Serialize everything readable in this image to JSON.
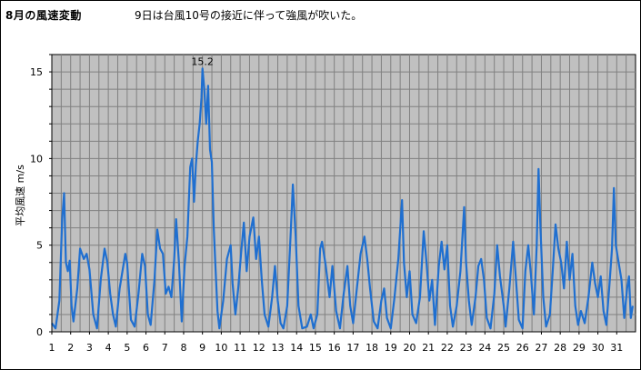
{
  "header": {
    "title": "8月の風速変動",
    "subtitle": "9日は台風10号の接近に伴って強風が吹いた。"
  },
  "colors": {
    "plot_background": "#c0c0c0",
    "grid": "#808080",
    "line": "#1f6fd0"
  },
  "chart_data": {
    "type": "line",
    "title": "8月の風速変動",
    "subtitle": "9日は台風10号の接近に伴って強風が吹いた。",
    "xlabel": "",
    "ylabel": "平均風速 m/s",
    "xlim": [
      1,
      32
    ],
    "ylim": [
      0,
      16
    ],
    "y_ticks": [
      0,
      5,
      10,
      15
    ],
    "x_ticks": [
      1,
      2,
      3,
      4,
      5,
      6,
      7,
      8,
      9,
      10,
      11,
      12,
      13,
      14,
      15,
      16,
      17,
      18,
      19,
      20,
      21,
      22,
      23,
      24,
      25,
      26,
      27,
      28,
      29,
      30,
      31
    ],
    "grid": true,
    "annotations": [
      {
        "text": "15.2",
        "x": 9.0,
        "y": 15.2
      }
    ],
    "series": [
      {
        "values": [
          [
            1.0,
            0.5
          ],
          [
            1.2,
            0.2
          ],
          [
            1.4,
            1.8
          ],
          [
            1.55,
            6.5
          ],
          [
            1.65,
            8.0
          ],
          [
            1.75,
            4.0
          ],
          [
            1.85,
            3.5
          ],
          [
            1.95,
            4.1
          ],
          [
            2.05,
            1.5
          ],
          [
            2.15,
            0.6
          ],
          [
            2.35,
            2.5
          ],
          [
            2.5,
            4.8
          ],
          [
            2.7,
            4.2
          ],
          [
            2.85,
            4.5
          ],
          [
            3.0,
            3.6
          ],
          [
            3.2,
            1.0
          ],
          [
            3.4,
            0.2
          ],
          [
            3.6,
            3.0
          ],
          [
            3.8,
            4.8
          ],
          [
            3.95,
            4.0
          ],
          [
            4.1,
            2.2
          ],
          [
            4.25,
            1.0
          ],
          [
            4.4,
            0.3
          ],
          [
            4.6,
            2.5
          ],
          [
            4.9,
            4.5
          ],
          [
            5.0,
            4.0
          ],
          [
            5.2,
            0.7
          ],
          [
            5.4,
            0.3
          ],
          [
            5.6,
            2.2
          ],
          [
            5.8,
            4.5
          ],
          [
            5.95,
            3.8
          ],
          [
            6.1,
            1.0
          ],
          [
            6.25,
            0.4
          ],
          [
            6.45,
            3.0
          ],
          [
            6.6,
            5.9
          ],
          [
            6.75,
            4.8
          ],
          [
            6.9,
            4.5
          ],
          [
            7.05,
            2.2
          ],
          [
            7.2,
            2.6
          ],
          [
            7.35,
            2.0
          ],
          [
            7.5,
            4.2
          ],
          [
            7.6,
            6.5
          ],
          [
            7.75,
            4.0
          ],
          [
            7.9,
            0.6
          ],
          [
            8.05,
            3.8
          ],
          [
            8.2,
            5.5
          ],
          [
            8.35,
            9.5
          ],
          [
            8.45,
            10.0
          ],
          [
            8.55,
            7.5
          ],
          [
            8.65,
            9.6
          ],
          [
            8.75,
            11.0
          ],
          [
            8.85,
            12.0
          ],
          [
            8.95,
            13.5
          ],
          [
            9.0,
            15.2
          ],
          [
            9.1,
            14.0
          ],
          [
            9.2,
            12.0
          ],
          [
            9.3,
            14.2
          ],
          [
            9.4,
            10.5
          ],
          [
            9.5,
            9.8
          ],
          [
            9.6,
            6.0
          ],
          [
            9.7,
            3.5
          ],
          [
            9.8,
            1.2
          ],
          [
            9.9,
            0.2
          ],
          [
            10.1,
            1.8
          ],
          [
            10.3,
            4.2
          ],
          [
            10.5,
            5.0
          ],
          [
            10.6,
            2.8
          ],
          [
            10.75,
            1.0
          ],
          [
            10.9,
            2.5
          ],
          [
            11.05,
            4.5
          ],
          [
            11.2,
            6.3
          ],
          [
            11.35,
            3.5
          ],
          [
            11.5,
            5.5
          ],
          [
            11.7,
            6.6
          ],
          [
            11.85,
            4.2
          ],
          [
            12.0,
            5.5
          ],
          [
            12.15,
            3.0
          ],
          [
            12.3,
            1.0
          ],
          [
            12.5,
            0.3
          ],
          [
            12.7,
            2.0
          ],
          [
            12.85,
            3.8
          ],
          [
            13.0,
            1.8
          ],
          [
            13.15,
            0.5
          ],
          [
            13.3,
            0.2
          ],
          [
            13.5,
            1.5
          ],
          [
            13.7,
            6.0
          ],
          [
            13.8,
            8.5
          ],
          [
            13.95,
            5.5
          ],
          [
            14.1,
            1.5
          ],
          [
            14.3,
            0.2
          ],
          [
            14.55,
            0.3
          ],
          [
            14.75,
            1.0
          ],
          [
            14.9,
            0.2
          ],
          [
            15.1,
            1.0
          ],
          [
            15.25,
            4.8
          ],
          [
            15.35,
            5.2
          ],
          [
            15.55,
            3.8
          ],
          [
            15.75,
            2.0
          ],
          [
            15.9,
            3.8
          ],
          [
            16.1,
            1.2
          ],
          [
            16.3,
            0.2
          ],
          [
            16.5,
            2.2
          ],
          [
            16.7,
            3.8
          ],
          [
            16.85,
            1.5
          ],
          [
            17.0,
            0.5
          ],
          [
            17.2,
            2.5
          ],
          [
            17.4,
            4.5
          ],
          [
            17.6,
            5.5
          ],
          [
            17.75,
            4.2
          ],
          [
            17.9,
            2.5
          ],
          [
            18.1,
            0.6
          ],
          [
            18.3,
            0.2
          ],
          [
            18.5,
            1.8
          ],
          [
            18.65,
            2.5
          ],
          [
            18.8,
            0.8
          ],
          [
            19.0,
            0.2
          ],
          [
            19.2,
            2.0
          ],
          [
            19.4,
            4.2
          ],
          [
            19.6,
            7.6
          ],
          [
            19.7,
            4.0
          ],
          [
            19.85,
            2.0
          ],
          [
            20.0,
            3.5
          ],
          [
            20.15,
            1.0
          ],
          [
            20.35,
            0.5
          ],
          [
            20.55,
            2.0
          ],
          [
            20.75,
            5.8
          ],
          [
            20.9,
            4.0
          ],
          [
            21.05,
            1.8
          ],
          [
            21.2,
            3.0
          ],
          [
            21.35,
            0.4
          ],
          [
            21.55,
            3.8
          ],
          [
            21.7,
            5.2
          ],
          [
            21.85,
            3.6
          ],
          [
            22.0,
            5.0
          ],
          [
            22.15,
            1.5
          ],
          [
            22.3,
            0.3
          ],
          [
            22.5,
            1.5
          ],
          [
            22.7,
            3.5
          ],
          [
            22.9,
            7.2
          ],
          [
            23.0,
            4.0
          ],
          [
            23.15,
            1.8
          ],
          [
            23.3,
            0.4
          ],
          [
            23.5,
            2.0
          ],
          [
            23.65,
            3.8
          ],
          [
            23.8,
            4.2
          ],
          [
            23.95,
            3.0
          ],
          [
            24.1,
            0.8
          ],
          [
            24.3,
            0.2
          ],
          [
            24.5,
            2.2
          ],
          [
            24.65,
            5.0
          ],
          [
            24.8,
            3.2
          ],
          [
            25.0,
            1.5
          ],
          [
            25.1,
            0.3
          ],
          [
            25.3,
            2.5
          ],
          [
            25.5,
            5.2
          ],
          [
            25.65,
            3.0
          ],
          [
            25.8,
            0.7
          ],
          [
            26.0,
            0.2
          ],
          [
            26.15,
            3.5
          ],
          [
            26.3,
            5.0
          ],
          [
            26.45,
            3.2
          ],
          [
            26.6,
            1.0
          ],
          [
            26.75,
            5.0
          ],
          [
            26.85,
            9.4
          ],
          [
            26.95,
            6.0
          ],
          [
            27.1,
            2.0
          ],
          [
            27.25,
            0.3
          ],
          [
            27.45,
            1.0
          ],
          [
            27.6,
            3.5
          ],
          [
            27.75,
            6.2
          ],
          [
            27.9,
            4.8
          ],
          [
            28.05,
            4.0
          ],
          [
            28.2,
            2.5
          ],
          [
            28.35,
            5.2
          ],
          [
            28.5,
            3.0
          ],
          [
            28.65,
            4.5
          ],
          [
            28.8,
            1.5
          ],
          [
            28.95,
            0.4
          ],
          [
            29.1,
            1.2
          ],
          [
            29.3,
            0.5
          ],
          [
            29.5,
            2.0
          ],
          [
            29.7,
            4.0
          ],
          [
            29.85,
            2.8
          ],
          [
            30.0,
            2.0
          ],
          [
            30.15,
            3.2
          ],
          [
            30.3,
            1.2
          ],
          [
            30.45,
            0.4
          ],
          [
            30.6,
            2.5
          ],
          [
            30.75,
            4.8
          ],
          [
            30.85,
            8.3
          ],
          [
            30.95,
            5.0
          ],
          [
            31.1,
            4.0
          ],
          [
            31.25,
            3.0
          ],
          [
            31.4,
            0.8
          ],
          [
            31.55,
            2.5
          ],
          [
            31.65,
            3.2
          ],
          [
            31.75,
            0.8
          ],
          [
            31.85,
            1.5
          ]
        ]
      }
    ]
  }
}
